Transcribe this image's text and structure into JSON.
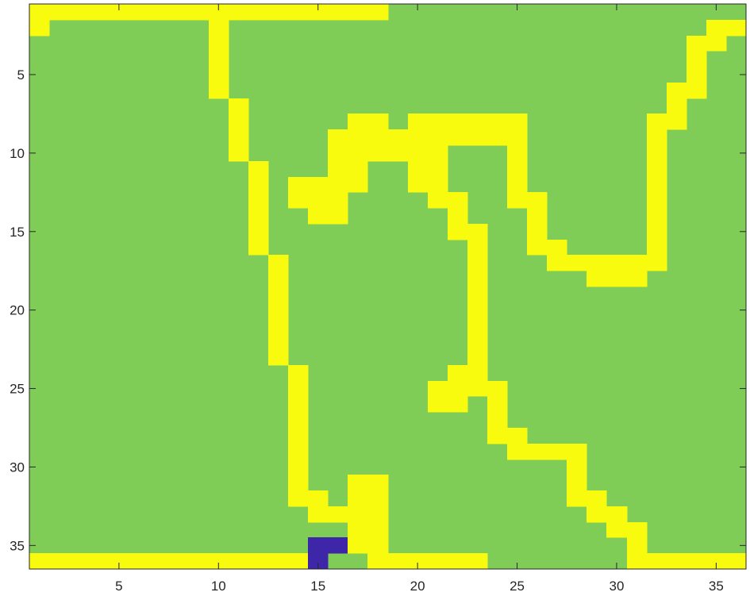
{
  "chart_data": {
    "type": "heatmap",
    "title": "",
    "xlabel": "",
    "ylabel": "",
    "rows": 36,
    "cols": 36,
    "xlim": [
      0.5,
      36.5
    ],
    "ylim": [
      0.5,
      36.5
    ],
    "y_direction": "reverse",
    "grid": false,
    "xticks": [
      5,
      10,
      15,
      20,
      25,
      30,
      35
    ],
    "yticks": [
      5,
      10,
      15,
      20,
      25,
      30,
      35
    ],
    "value_colors": {
      "0": "#3e26a8",
      "1": "#7fcc56",
      "2": "#f9fb0e"
    },
    "background_value": 1,
    "cells": [
      [
        1,
        1,
        18,
        2
      ],
      [
        2,
        1,
        1,
        2
      ],
      [
        2,
        10,
        10,
        2
      ],
      [
        3,
        10,
        10,
        2
      ],
      [
        4,
        10,
        10,
        2
      ],
      [
        5,
        10,
        10,
        2
      ],
      [
        6,
        10,
        10,
        2
      ],
      [
        7,
        11,
        11,
        2
      ],
      [
        8,
        11,
        11,
        2
      ],
      [
        9,
        11,
        11,
        2
      ],
      [
        10,
        11,
        11,
        2
      ],
      [
        11,
        12,
        12,
        2
      ],
      [
        12,
        12,
        12,
        2
      ],
      [
        13,
        12,
        12,
        2
      ],
      [
        14,
        12,
        12,
        2
      ],
      [
        15,
        12,
        12,
        2
      ],
      [
        16,
        12,
        12,
        2
      ],
      [
        17,
        13,
        13,
        2
      ],
      [
        18,
        13,
        13,
        2
      ],
      [
        19,
        13,
        13,
        2
      ],
      [
        20,
        13,
        13,
        2
      ],
      [
        21,
        13,
        13,
        2
      ],
      [
        22,
        13,
        13,
        2
      ],
      [
        23,
        13,
        13,
        2
      ],
      [
        24,
        14,
        14,
        2
      ],
      [
        25,
        14,
        14,
        2
      ],
      [
        26,
        14,
        14,
        2
      ],
      [
        27,
        14,
        14,
        2
      ],
      [
        28,
        14,
        14,
        2
      ],
      [
        29,
        14,
        14,
        2
      ],
      [
        30,
        14,
        14,
        2
      ],
      [
        31,
        14,
        14,
        2
      ],
      [
        32,
        14,
        15,
        2
      ],
      [
        33,
        15,
        17,
        2
      ],
      [
        34,
        17,
        17,
        2
      ],
      [
        35,
        15,
        16,
        0
      ],
      [
        35,
        17,
        17,
        2
      ],
      [
        36,
        1,
        14,
        2
      ],
      [
        36,
        15,
        15,
        0
      ],
      [
        36,
        18,
        23,
        2
      ],
      [
        31,
        17,
        18,
        2
      ],
      [
        32,
        17,
        18,
        2
      ],
      [
        33,
        17,
        18,
        2
      ],
      [
        34,
        18,
        18,
        2
      ],
      [
        35,
        18,
        18,
        2
      ],
      [
        8,
        17,
        18,
        2
      ],
      [
        8,
        20,
        25,
        2
      ],
      [
        9,
        16,
        25,
        2
      ],
      [
        10,
        16,
        21,
        2
      ],
      [
        10,
        25,
        25,
        2
      ],
      [
        11,
        16,
        17,
        2
      ],
      [
        11,
        20,
        21,
        2
      ],
      [
        11,
        25,
        25,
        2
      ],
      [
        12,
        14,
        17,
        2
      ],
      [
        12,
        20,
        21,
        2
      ],
      [
        12,
        25,
        25,
        2
      ],
      [
        13,
        14,
        16,
        2
      ],
      [
        13,
        21,
        22,
        2
      ],
      [
        13,
        25,
        26,
        2
      ],
      [
        14,
        15,
        16,
        2
      ],
      [
        14,
        22,
        22,
        2
      ],
      [
        14,
        26,
        26,
        2
      ],
      [
        15,
        22,
        23,
        2
      ],
      [
        15,
        26,
        26,
        2
      ],
      [
        16,
        23,
        23,
        2
      ],
      [
        16,
        26,
        27,
        2
      ],
      [
        17,
        23,
        23,
        2
      ],
      [
        17,
        27,
        32,
        2
      ],
      [
        18,
        23,
        23,
        2
      ],
      [
        18,
        29,
        31,
        2
      ],
      [
        19,
        23,
        23,
        2
      ],
      [
        20,
        23,
        23,
        2
      ],
      [
        21,
        23,
        23,
        2
      ],
      [
        22,
        23,
        23,
        2
      ],
      [
        23,
        23,
        23,
        2
      ],
      [
        24,
        22,
        23,
        2
      ],
      [
        25,
        21,
        24,
        2
      ],
      [
        26,
        21,
        22,
        2
      ],
      [
        26,
        24,
        24,
        2
      ],
      [
        27,
        24,
        24,
        2
      ],
      [
        28,
        24,
        25,
        2
      ],
      [
        29,
        25,
        28,
        2
      ],
      [
        30,
        28,
        28,
        2
      ],
      [
        31,
        28,
        28,
        2
      ],
      [
        32,
        28,
        29,
        2
      ],
      [
        33,
        29,
        30,
        2
      ],
      [
        34,
        30,
        31,
        2
      ],
      [
        35,
        31,
        31,
        2
      ],
      [
        36,
        31,
        36,
        2
      ],
      [
        2,
        35,
        36,
        2
      ],
      [
        3,
        34,
        35,
        2
      ],
      [
        4,
        34,
        34,
        2
      ],
      [
        5,
        34,
        34,
        2
      ],
      [
        6,
        33,
        34,
        2
      ],
      [
        7,
        33,
        33,
        2
      ],
      [
        8,
        32,
        33,
        2
      ],
      [
        9,
        32,
        32,
        2
      ],
      [
        10,
        32,
        32,
        2
      ],
      [
        11,
        32,
        32,
        2
      ],
      [
        12,
        32,
        32,
        2
      ],
      [
        13,
        32,
        32,
        2
      ],
      [
        14,
        32,
        32,
        2
      ],
      [
        15,
        32,
        32,
        2
      ],
      [
        16,
        32,
        32,
        2
      ],
      [
        17,
        32,
        32,
        2
      ]
    ]
  }
}
